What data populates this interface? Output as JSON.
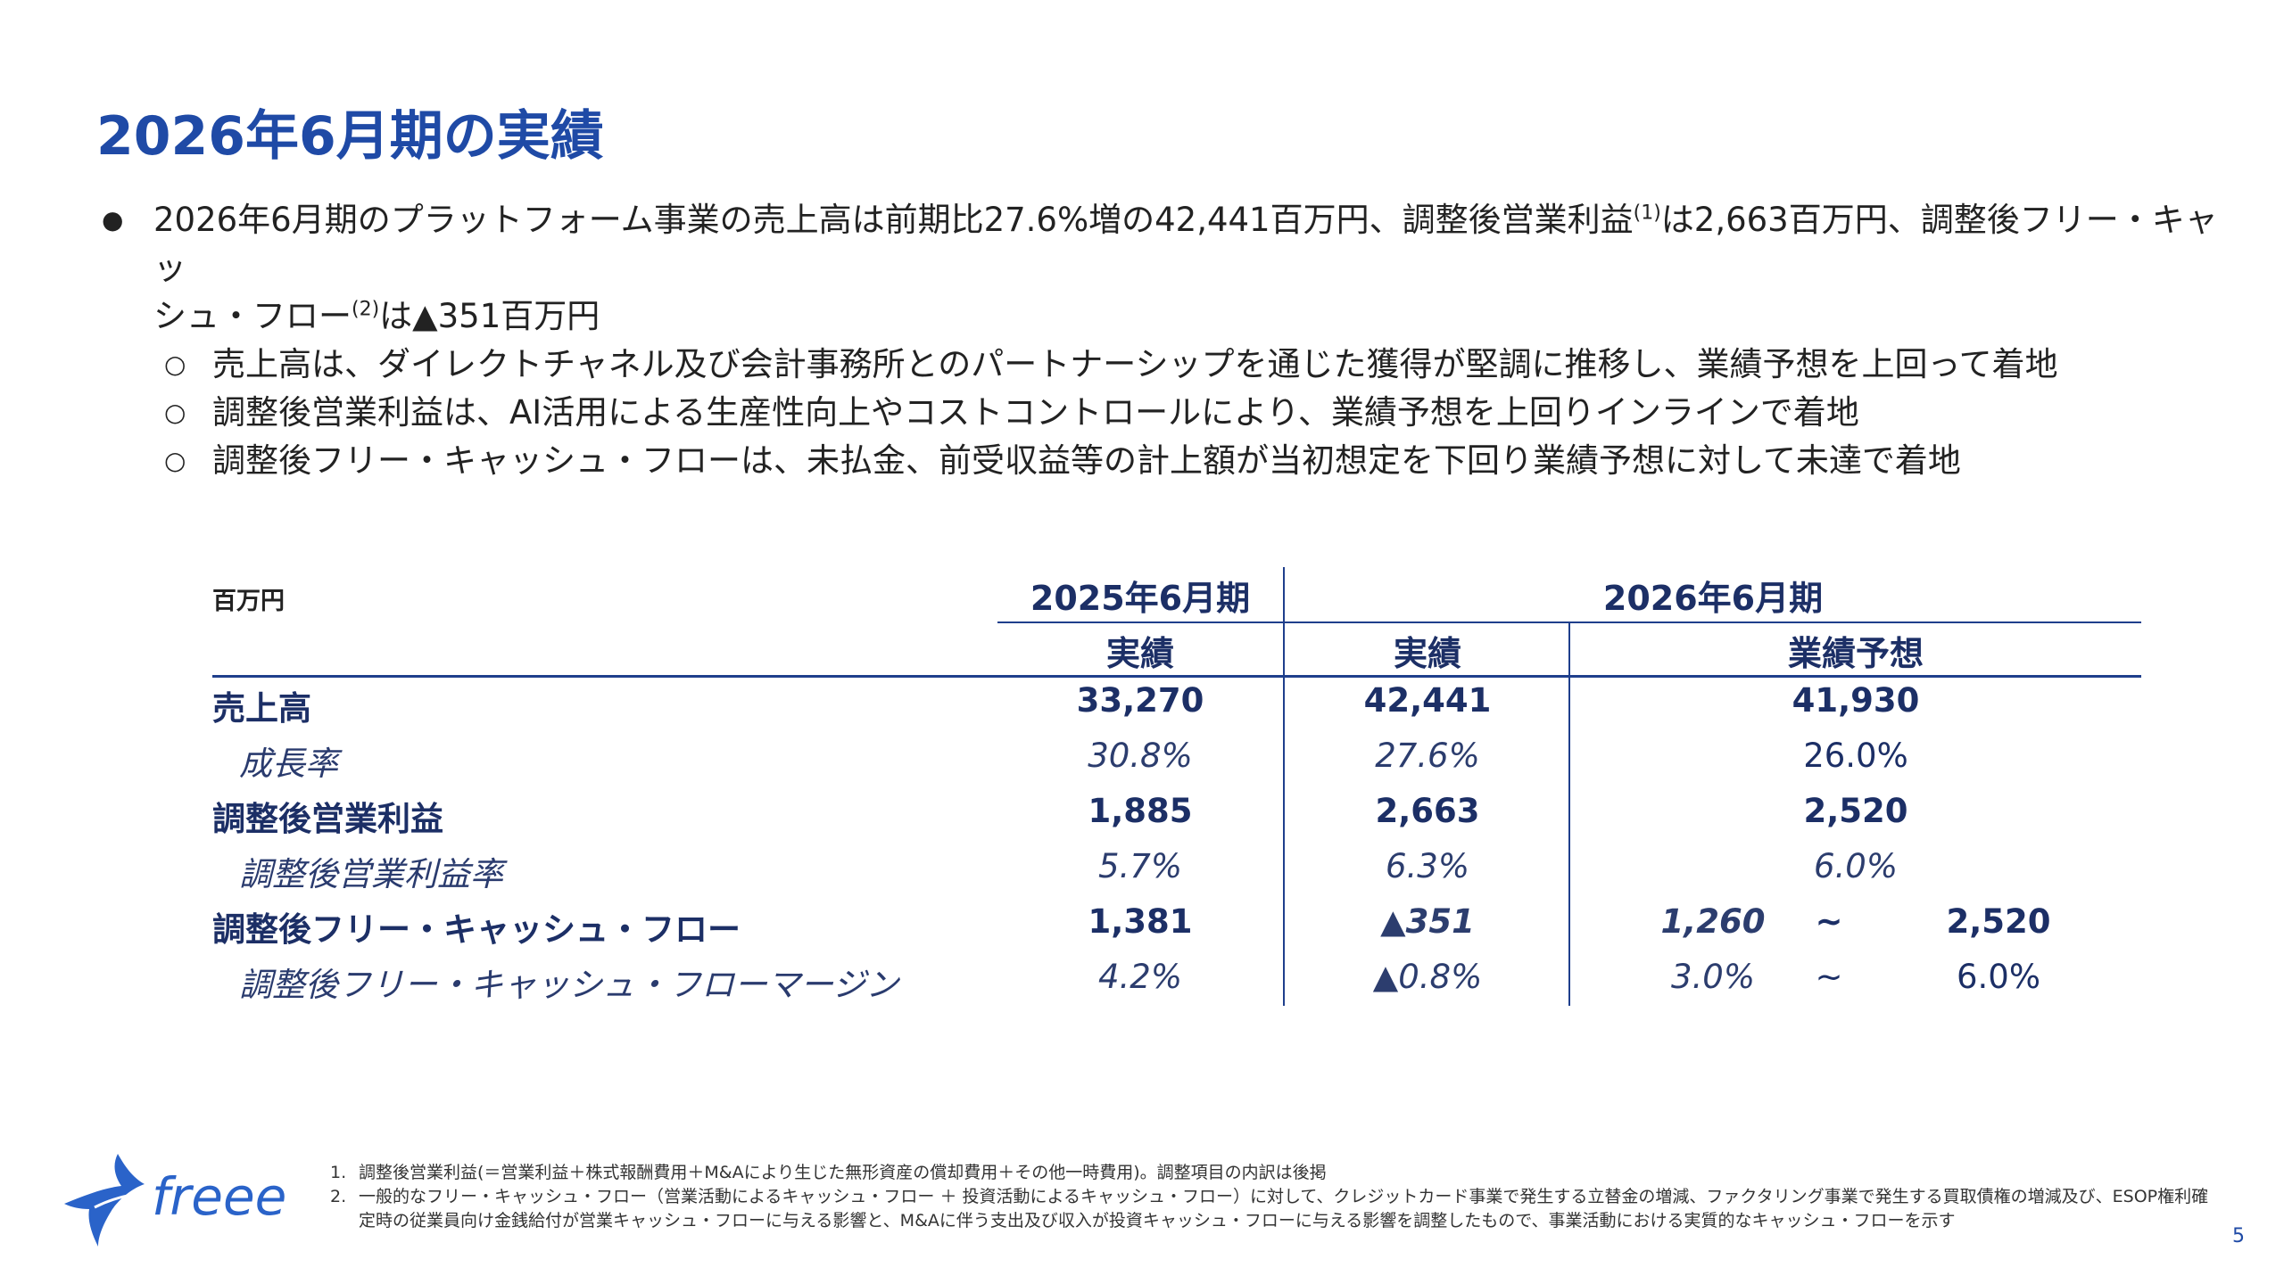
{
  "title": "2026年6月期の実績",
  "bullets": {
    "main_part1": "2026年6月期のプラットフォーム事業の売上高は前期比27.6%増の42,441百万円、調整後営業利益",
    "main_sup1": "(1)",
    "main_part2": "は2,663百万円、調整後フリー・キャッ",
    "main_line2_part1": "シュ・フロー",
    "main_sup2": "(2)",
    "main_line2_part2": "は▲351百万円",
    "subs": [
      "売上高は、ダイレクトチャネル及び会計事務所とのパートナーシップを通じた獲得が堅調に推移し、業績予想を上回って着地",
      "調整後営業利益は、AI活用による生産性向上やコストコントロールにより、業績予想を上回りインラインで着地",
      "調整後フリー・キャッシュ・フローは、未払金、前受収益等の計上額が当初想定を下回り業績予想に対して未達で着地"
    ]
  },
  "table": {
    "unit": "百万円",
    "header_2025": "2025年6月期",
    "header_2026": "2026年6月期",
    "col_actual_2025": "実績",
    "col_actual_2026": "実績",
    "col_forecast": "業績予想",
    "rows": [
      {
        "label": "売上高",
        "v2025": "33,270",
        "v2026": "42,441",
        "forecast": "41,930"
      },
      {
        "label": "成長率",
        "v2025": "30.8%",
        "v2026": "27.6%",
        "forecast": "26.0%"
      },
      {
        "label": "調整後営業利益",
        "v2025": "1,885",
        "v2026": "2,663",
        "forecast": "2,520"
      },
      {
        "label": "調整後営業利益率",
        "v2025": "5.7%",
        "v2026": "6.3%",
        "forecast": "6.0%"
      },
      {
        "label": "調整後フリー・キャッシュ・フロー",
        "v2025": "1,381",
        "v2026": "▲351",
        "forecast_low": "1,260",
        "tilde": "~",
        "forecast_high": "2,520"
      },
      {
        "label": "調整後フリー・キャッシュ・フローマージン",
        "v2025": "4.2%",
        "v2026": "▲0.8%",
        "forecast_low": "3.0%",
        "tilde": "~",
        "forecast_high": "6.0%"
      }
    ]
  },
  "footnotes": [
    {
      "num": "1.",
      "text": "調整後営業利益(＝営業利益＋株式報酬費用＋M&Aにより生じた無形資産の償却費用＋その他一時費用)。調整項目の内訳は後掲"
    },
    {
      "num": "2.",
      "text": "一般的なフリー・キャッシュ・フロー（営業活動によるキャッシュ・フロー ＋ 投資活動によるキャッシュ・フロー）に対して、クレジットカード事業で発生する立替金の増減、ファクタリング事業で発生する買取債権の増減及び、ESOP権利確定時の従業員向け金銭給付が営業キャッシュ・フローに与える影響と、M&Aに伴う支出及び収入が投資キャッシュ・フローに与える影響を調整したもので、事業活動における実質的なキャッシュ・フローを示す"
    }
  ],
  "logo_text": "freee",
  "page_number": "5",
  "colors": {
    "brand_blue": "#1f4aa6",
    "table_navy": "#1c2f66"
  }
}
